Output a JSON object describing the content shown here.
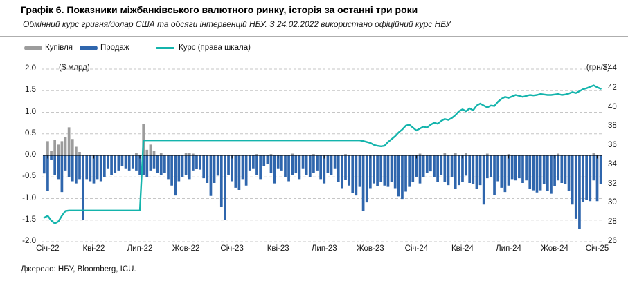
{
  "header": {
    "title": "Графік 6. Показники міжбанківського валютного ринку, історія за останні три роки",
    "subtitle": "Обмінний курс гривня/долар США та обсяги інтервенцій НБУ. З 24.02.2022 використано офіційний курс НБУ"
  },
  "legend": {
    "buy": "Купівля",
    "sell": "Продаж",
    "rate": "Курс (права шкала)"
  },
  "footer": {
    "source": "Джерело: НБУ, Bloomberg, ICU."
  },
  "colors": {
    "buy": "#9c9c9c",
    "sell": "#2f66ad",
    "rate": "#14b4ac",
    "grid": "#c6c6c6",
    "zero": "#111111"
  },
  "chart_data": {
    "type": "bar",
    "note": "weekly data, Jan-2022 .. Jan-2025; bars on left axis ($ bn), line on right axis (UAH/USD)",
    "left_axis": {
      "label": "($ млрд)",
      "range": [
        -2.0,
        2.0
      ],
      "ticks": [
        "2.0",
        "1.5",
        "1.0",
        "0.5",
        "0.0",
        "-0.5",
        "-1.0",
        "-1.5",
        "-2.0"
      ]
    },
    "right_axis": {
      "label": "(грн/$)",
      "range": [
        26,
        44
      ],
      "ticks": [
        "44",
        "42",
        "40",
        "38",
        "36",
        "34",
        "32",
        "30",
        "28",
        "26"
      ]
    },
    "x_ticks": {
      "labels": [
        "Січ-22",
        "Кві-22",
        "Лип-22",
        "Жов-22",
        "Січ-23",
        "Кві-23",
        "Лип-23",
        "Жов-23",
        "Січ-24",
        "Кві-24",
        "Лип-24",
        "Жов-24",
        "Січ-25"
      ],
      "week_index": [
        1,
        14,
        27,
        40,
        53,
        66,
        79,
        92,
        105,
        118,
        131,
        144,
        156
      ]
    },
    "series": [
      {
        "name": "Купівля",
        "type": "bar",
        "axis": "left",
        "values": [
          0,
          0.33,
          0.1,
          0.36,
          0.25,
          0.33,
          0.42,
          0.65,
          0.38,
          0.2,
          0.08,
          0,
          0,
          0,
          0,
          0,
          0,
          0,
          0,
          0,
          0,
          0,
          0,
          0,
          0,
          0,
          0.06,
          0,
          0.72,
          0.13,
          0.25,
          0.1,
          0,
          0.06,
          0,
          0,
          0,
          0,
          0,
          0,
          0.06,
          0.05,
          0.04,
          0,
          0,
          0,
          0,
          0,
          0,
          0,
          0,
          0,
          0,
          0,
          0,
          0,
          0,
          0,
          0,
          0,
          0.03,
          0,
          0,
          0,
          0.03,
          0,
          0,
          0,
          0,
          0,
          0.04,
          0,
          0,
          0,
          0,
          0,
          0.03,
          0,
          0,
          0,
          0,
          0,
          0,
          0,
          0,
          0.03,
          0,
          0,
          0,
          0,
          0,
          0,
          0,
          0,
          0,
          0,
          0,
          0,
          0,
          0,
          0,
          0,
          0,
          0,
          0,
          0,
          0.04,
          0,
          0,
          0,
          0,
          0,
          0,
          0.05,
          0,
          0,
          0.06,
          0,
          0,
          0.05,
          0,
          0,
          0,
          0,
          0,
          0.04,
          0,
          0,
          0,
          0,
          0,
          0.03,
          0,
          0,
          0,
          0,
          0,
          0,
          0,
          0,
          0,
          0,
          0,
          0,
          0,
          0.04,
          0,
          0,
          0,
          0,
          0,
          0,
          0,
          0,
          0,
          0.05,
          0,
          0
        ]
      },
      {
        "name": "Продаж",
        "type": "bar",
        "axis": "left",
        "values": [
          -0.42,
          -0.83,
          -0.1,
          -0.45,
          -0.55,
          -0.85,
          -0.35,
          -0.5,
          -0.6,
          -0.65,
          -0.55,
          -1.5,
          -0.55,
          -0.6,
          -0.65,
          -0.55,
          -0.6,
          -0.5,
          -0.3,
          -0.45,
          -0.4,
          -0.35,
          -0.25,
          -0.3,
          -0.35,
          -0.3,
          -0.35,
          -0.45,
          -0.45,
          -0.5,
          -0.35,
          -0.3,
          -0.4,
          -0.45,
          -0.4,
          -0.55,
          -0.7,
          -0.93,
          -0.6,
          -0.5,
          -0.45,
          -0.55,
          -0.35,
          -0.31,
          -0.33,
          -0.53,
          -0.64,
          -0.94,
          -0.64,
          -0.47,
          -1.19,
          -1.5,
          -0.45,
          -0.6,
          -0.75,
          -0.8,
          -0.55,
          -0.7,
          -0.35,
          -0.3,
          -0.45,
          -0.55,
          -0.25,
          -0.2,
          -0.4,
          -0.65,
          -0.3,
          -0.35,
          -0.5,
          -0.6,
          -0.45,
          -0.4,
          -0.55,
          -0.3,
          -0.45,
          -0.5,
          -0.4,
          -0.35,
          -0.55,
          -0.65,
          -0.4,
          -0.45,
          -0.3,
          -0.62,
          -0.76,
          -0.57,
          -0.7,
          -0.87,
          -0.93,
          -0.73,
          -1.29,
          -1.09,
          -0.76,
          -0.65,
          -0.71,
          -0.62,
          -0.7,
          -0.73,
          -0.62,
          -0.76,
          -0.95,
          -1.01,
          -0.84,
          -0.73,
          -0.62,
          -0.51,
          -0.65,
          -0.51,
          -0.4,
          -0.37,
          -0.51,
          -0.62,
          -0.46,
          -0.61,
          -0.69,
          -0.5,
          -0.78,
          -0.69,
          -0.61,
          -0.47,
          -0.64,
          -0.67,
          -0.78,
          -0.69,
          -1.14,
          -0.53,
          -0.5,
          -0.92,
          -0.6,
          -0.75,
          -0.85,
          -0.7,
          -0.55,
          -0.58,
          -0.53,
          -0.64,
          -0.58,
          -0.78,
          -0.81,
          -0.86,
          -0.81,
          -0.67,
          -0.83,
          -0.89,
          -0.72,
          -0.58,
          -0.64,
          -0.67,
          -0.83,
          -1.14,
          -1.47,
          -1.7,
          -1.08,
          -1.03,
          -1.06,
          -0.58,
          -1.06,
          -0.67
        ]
      },
      {
        "name": "Курс (права шкала)",
        "type": "line",
        "axis": "right",
        "values": [
          28.5,
          28.7,
          28.2,
          27.9,
          28.1,
          28.7,
          29.2,
          29.25,
          29.25,
          29.25,
          29.25,
          29.25,
          29.25,
          29.25,
          29.25,
          29.25,
          29.25,
          29.25,
          29.25,
          29.25,
          29.25,
          29.25,
          29.25,
          29.25,
          29.25,
          29.25,
          29.25,
          29.25,
          36.57,
          36.57,
          36.57,
          36.57,
          36.57,
          36.57,
          36.57,
          36.57,
          36.57,
          36.57,
          36.57,
          36.57,
          36.57,
          36.57,
          36.57,
          36.57,
          36.57,
          36.57,
          36.57,
          36.57,
          36.57,
          36.57,
          36.57,
          36.57,
          36.57,
          36.57,
          36.57,
          36.57,
          36.57,
          36.57,
          36.57,
          36.57,
          36.57,
          36.57,
          36.57,
          36.57,
          36.57,
          36.57,
          36.57,
          36.57,
          36.57,
          36.57,
          36.57,
          36.57,
          36.57,
          36.57,
          36.57,
          36.57,
          36.57,
          36.57,
          36.57,
          36.57,
          36.57,
          36.57,
          36.57,
          36.57,
          36.57,
          36.57,
          36.57,
          36.57,
          36.57,
          36.57,
          36.5,
          36.4,
          36.3,
          36.1,
          36.0,
          35.95,
          36.0,
          36.4,
          36.7,
          37.0,
          37.4,
          37.7,
          38.1,
          38.2,
          37.9,
          37.6,
          37.8,
          38.0,
          37.9,
          38.2,
          38.4,
          38.3,
          38.6,
          38.8,
          38.7,
          38.9,
          39.2,
          39.6,
          39.8,
          39.6,
          39.9,
          39.7,
          40.2,
          40.4,
          40.2,
          40.0,
          40.2,
          40.15,
          40.6,
          40.9,
          41.1,
          41.0,
          41.15,
          41.3,
          41.2,
          41.1,
          41.2,
          41.3,
          41.25,
          41.3,
          41.4,
          41.35,
          41.3,
          41.3,
          41.35,
          41.4,
          41.3,
          41.35,
          41.45,
          41.6,
          41.5,
          41.7,
          41.9,
          42.0,
          42.15,
          42.3,
          42.1,
          41.95
        ]
      }
    ]
  }
}
